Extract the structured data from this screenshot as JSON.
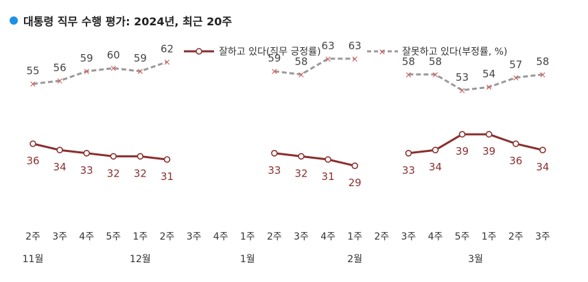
{
  "title": "대통령 직무 수행 평가: 2024년, 최근 20주",
  "colors": {
    "positive": "#8b2e2e",
    "negative": "#999999",
    "negative_marker": "#d06060",
    "title_dot": "#1e90e6"
  },
  "chart_data": {
    "type": "line",
    "title": "대통령 직무 수행 평가: 2024년, 최근 20주",
    "legend_position": "top-right",
    "grid": false,
    "x": [
      "2주",
      "3주",
      "4주",
      "5주",
      "1주",
      "2주",
      "3주",
      "4주",
      "1주",
      "2주",
      "3주",
      "4주",
      "1주",
      "2주",
      "3주",
      "4주",
      "5주",
      "1주",
      "2주",
      "3주"
    ],
    "months": [
      {
        "label": "11월",
        "index": 0
      },
      {
        "label": "12월",
        "index": 4
      },
      {
        "label": "1월",
        "index": 8
      },
      {
        "label": "2월",
        "index": 12
      },
      {
        "label": "3월",
        "index": 16.5
      }
    ],
    "ylim": [
      20,
      70
    ],
    "series": [
      {
        "name": "잘하고 있다(직무 긍정률)",
        "key": "positive",
        "values": [
          36,
          34,
          33,
          32,
          32,
          31,
          null,
          null,
          null,
          33,
          32,
          31,
          29,
          null,
          33,
          34,
          39,
          39,
          36,
          34
        ]
      },
      {
        "name": "잘못하고 있다(부정률, %)",
        "key": "negative",
        "values": [
          55,
          56,
          59,
          60,
          59,
          62,
          null,
          null,
          null,
          59,
          58,
          63,
          63,
          null,
          58,
          58,
          53,
          54,
          57,
          58
        ]
      }
    ]
  }
}
